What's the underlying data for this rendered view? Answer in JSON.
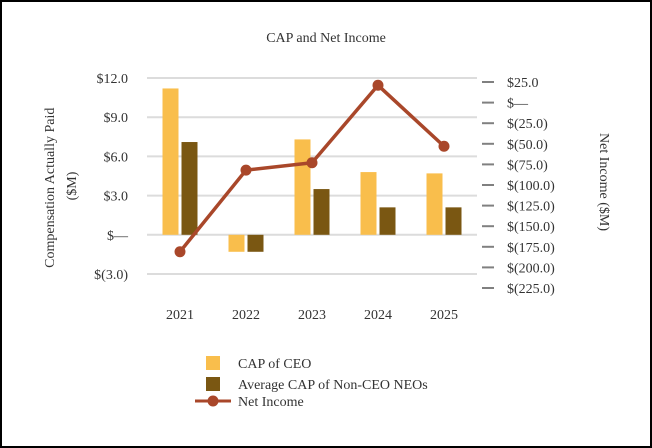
{
  "chart_data": {
    "type": "bar",
    "title": "CAP and Net Income",
    "categories": [
      "2021",
      "2022",
      "2023",
      "2024",
      "2025"
    ],
    "series": [
      {
        "name": "CAP of CEO",
        "axis": "left",
        "type": "bar",
        "color": "#F9BE4C",
        "values": [
          11.2,
          -1.3,
          7.3,
          4.8,
          4.7
        ]
      },
      {
        "name": "Average CAP of Non-CEO NEOs",
        "axis": "left",
        "type": "bar",
        "color": "#7A5712",
        "values": [
          7.1,
          -1.3,
          3.5,
          2.1,
          2.1
        ]
      },
      {
        "name": "Net Income",
        "axis": "right",
        "type": "line",
        "color": "#A9472A",
        "values": [
          -181,
          -82,
          -73,
          21,
          -53
        ]
      }
    ],
    "ylabel": "Compensation Actually Paid ($M)",
    "y2label": "Net Income ($M)",
    "ylim": [
      -3.0,
      12.0
    ],
    "y2lim": [
      -225.0,
      25.0
    ],
    "yticks": [
      {
        "value": 12,
        "label": "$12.0"
      },
      {
        "value": 9,
        "label": "$9.0"
      },
      {
        "value": 6,
        "label": "$6.0"
      },
      {
        "value": 3,
        "label": "$3.0"
      },
      {
        "value": 0,
        "label": "$—"
      },
      {
        "value": -3,
        "label": "$(3.0)"
      }
    ],
    "y2ticks": [
      {
        "value": 25,
        "label": "$25.0"
      },
      {
        "value": 0,
        "label": "$—"
      },
      {
        "value": -25,
        "label": "$(25.0)"
      },
      {
        "value": -50,
        "label": "$(50.0)"
      },
      {
        "value": -75,
        "label": "$(75.0)"
      },
      {
        "value": -100,
        "label": "$(100.0)"
      },
      {
        "value": -125,
        "label": "$(125.0)"
      },
      {
        "value": -150,
        "label": "$(150.0)"
      },
      {
        "value": -175,
        "label": "$(175.0)"
      },
      {
        "value": -200,
        "label": "$(200.0)"
      },
      {
        "value": -225,
        "label": "$(225.0)"
      }
    ],
    "grid": true,
    "legend": "bottom"
  },
  "legend": {
    "cap_ceo": "CAP of CEO",
    "cap_neo": "Average CAP of Non-CEO NEOs",
    "net_income": "Net Income"
  }
}
